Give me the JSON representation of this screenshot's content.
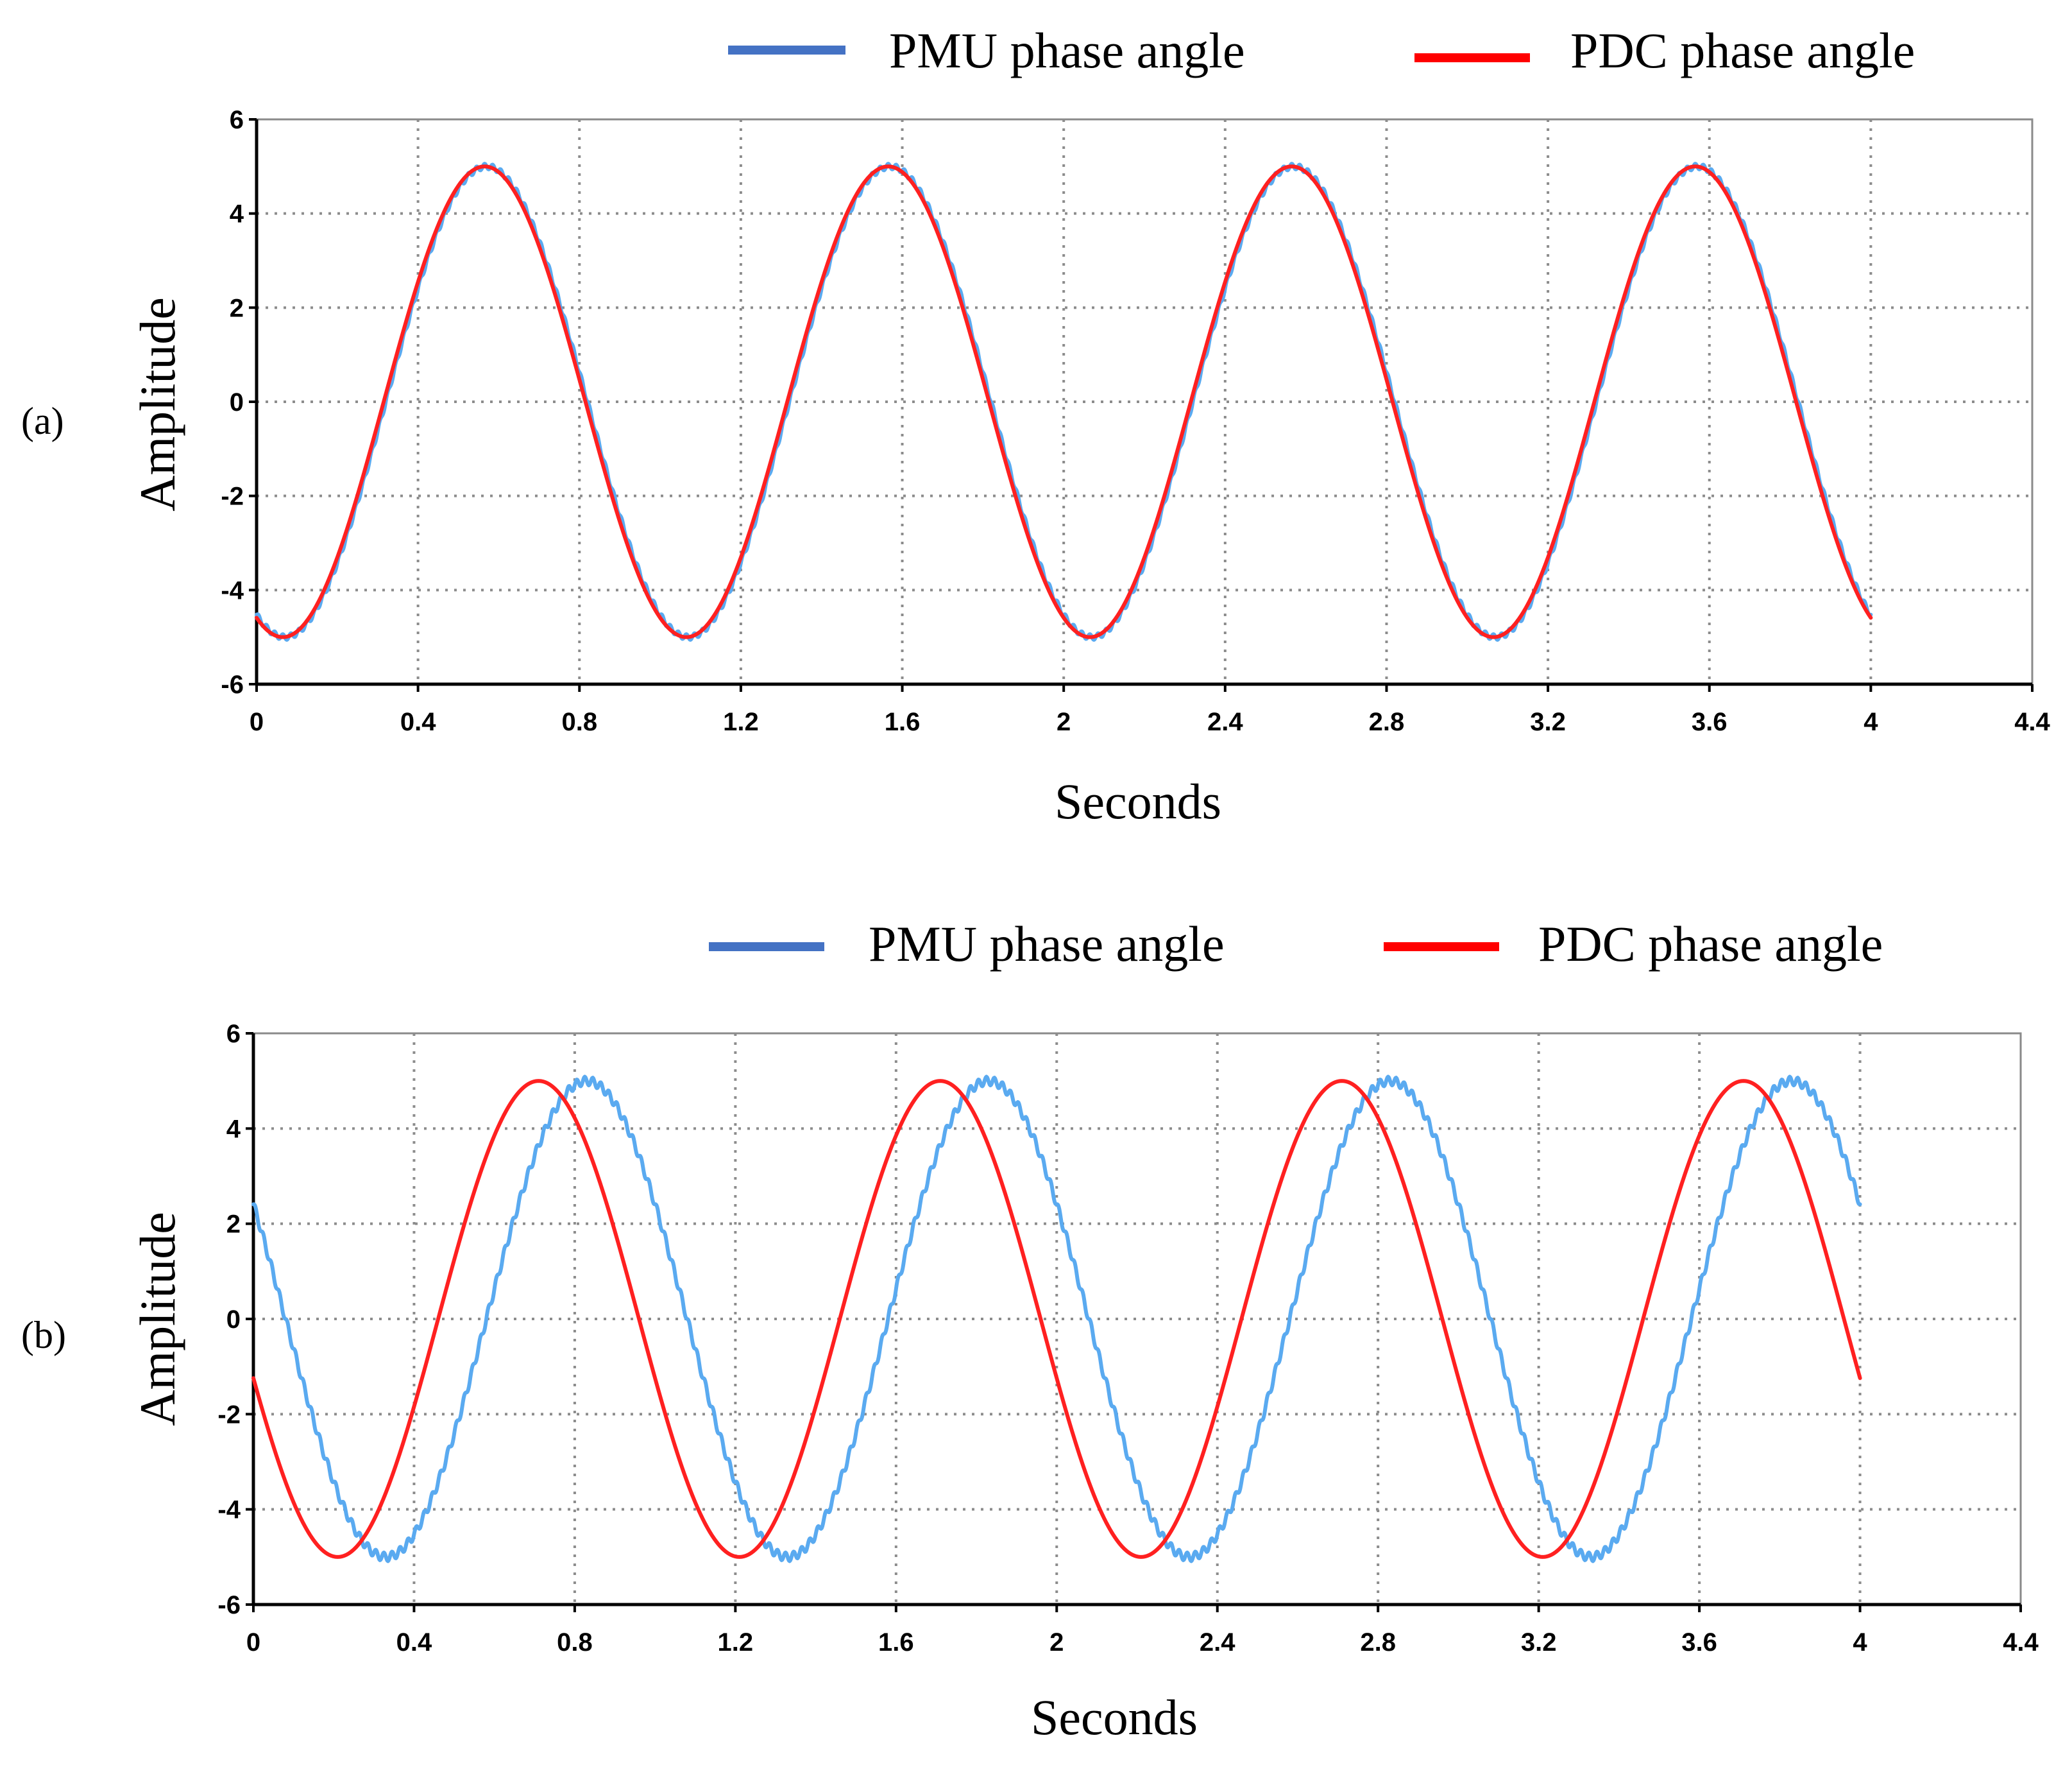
{
  "chart_data": [
    {
      "type": "line",
      "panel_label": "(a)",
      "xlabel": "Seconds",
      "ylabel": "Amplitude",
      "xlim": [
        0,
        4.4
      ],
      "ylim": [
        -6,
        6
      ],
      "x_ticks": [
        "0",
        "0.4",
        "0.8",
        "1.2",
        "1.6",
        "2",
        "2.4",
        "2.8",
        "3.2",
        "3.6",
        "4",
        "4.4"
      ],
      "y_ticks": [
        "6",
        "4",
        "2",
        "0",
        "-2",
        "-4",
        "-6"
      ],
      "grid": true,
      "legend": [
        "PMU phase angle",
        "PDC phase angle"
      ],
      "series": [
        {
          "name": "PMU phase angle",
          "color": "#5aaaf0",
          "legend_color": "#4472c4",
          "x_range": [
            0,
            4
          ],
          "amplitude": 5,
          "period": 1,
          "peak_time": 0.57,
          "ripple_amplitude": 0.06,
          "ripple_frequency": 50
        },
        {
          "name": "PDC phase angle",
          "color": "#ff2020",
          "legend_color": "#ff0000",
          "x_range": [
            0,
            4
          ],
          "amplitude": 5,
          "period": 1,
          "peak_time": 0.565,
          "ripple_amplitude": 0,
          "ripple_frequency": 0
        }
      ]
    },
    {
      "type": "line",
      "panel_label": "(b)",
      "xlabel": "Seconds",
      "ylabel": "Amplitude",
      "xlim": [
        0,
        4.4
      ],
      "ylim": [
        -6,
        6
      ],
      "x_ticks": [
        "0",
        "0.4",
        "0.8",
        "1.2",
        "1.6",
        "2",
        "2.4",
        "2.8",
        "3.2",
        "3.6",
        "4",
        "4.4"
      ],
      "y_ticks": [
        "6",
        "4",
        "2",
        "0",
        "-2",
        "-4",
        "-6"
      ],
      "grid": true,
      "legend": [
        "PMU phase angle",
        "PDC phase angle"
      ],
      "series": [
        {
          "name": "PMU phase angle",
          "color": "#5aaaf0",
          "legend_color": "#4472c4",
          "x_range": [
            0,
            4
          ],
          "amplitude": 5,
          "period": 1,
          "peak_time": 0.83,
          "ripple_amplitude": 0.09,
          "ripple_frequency": 50
        },
        {
          "name": "PDC phase angle",
          "color": "#ff2020",
          "legend_color": "#ff0000",
          "x_range": [
            0,
            4
          ],
          "amplitude": 5,
          "period": 1,
          "peak_time": 0.71,
          "ripple_amplitude": 0,
          "ripple_frequency": 0
        }
      ]
    }
  ]
}
